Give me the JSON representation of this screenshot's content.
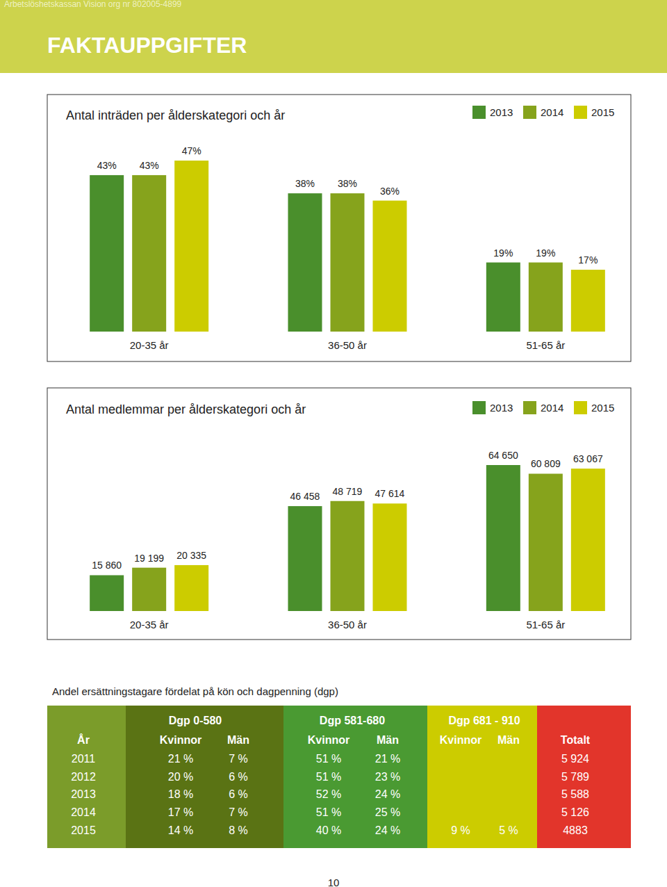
{
  "header": {
    "org": "Arbetslöshetskassan Vision org nr 802005-4899",
    "title": "FAKTAUPPGIFTER"
  },
  "chart_data": [
    {
      "type": "bar",
      "title": "Antal inträden per ålderskategori och år",
      "categories": [
        "20-35 år",
        "36-50 år",
        "51-65 år"
      ],
      "series": [
        {
          "name": "2013",
          "color": "#4a8f2c",
          "values": [
            43,
            38,
            19
          ],
          "value_labels": [
            "43%",
            "38%",
            "19%"
          ]
        },
        {
          "name": "2014",
          "color": "#86a31c",
          "values": [
            43,
            38,
            19
          ],
          "value_labels": [
            "43%",
            "38%",
            "19%"
          ]
        },
        {
          "name": "2015",
          "color": "#cccc00",
          "values": [
            47,
            36,
            17
          ],
          "value_labels": [
            "47%",
            "36%",
            "17%"
          ]
        }
      ],
      "ylim": [
        0,
        47
      ],
      "legend": "top-right",
      "data_labels": true,
      "tick_labels": "x",
      "grid": false
    },
    {
      "type": "bar",
      "title": "Antal medlemmar per ålderskategori och år",
      "categories": [
        "20-35 år",
        "36-50 år",
        "51-65 år"
      ],
      "series": [
        {
          "name": "2013",
          "color": "#4a8f2c",
          "values": [
            15860,
            46458,
            64650
          ],
          "value_labels": [
            "15 860",
            "46 458",
            "64 650"
          ]
        },
        {
          "name": "2014",
          "color": "#86a31c",
          "values": [
            19199,
            48719,
            60809
          ],
          "value_labels": [
            "19 199",
            "48 719",
            "60 809"
          ]
        },
        {
          "name": "2015",
          "color": "#cccc00",
          "values": [
            20335,
            47614,
            63067
          ],
          "value_labels": [
            "20 335",
            "47 614",
            "63 067"
          ]
        }
      ],
      "ylim": [
        0,
        64650
      ],
      "legend": "top-right",
      "data_labels": true,
      "tick_labels": "x",
      "grid": false
    }
  ],
  "table": {
    "title": "Andel ersättningstagare fördelat på kön och dagpenning (dgp)",
    "groups": [
      "Dgp 0-580",
      "Dgp 581-680",
      "Dgp 681 - 910"
    ],
    "columns": [
      "År",
      "Kvinnor",
      "Män",
      "Kvinnor",
      "Män",
      "Kvinnor",
      "Män",
      "Totalt"
    ],
    "rows": [
      [
        "2011",
        "21 %",
        "7 %",
        "51 %",
        "21 %",
        null,
        null,
        "5 924"
      ],
      [
        "2012",
        "20 %",
        "6 %",
        "51 %",
        "23 %",
        null,
        null,
        "5 789"
      ],
      [
        "2013",
        "18 %",
        "6 %",
        "52 %",
        "24 %",
        null,
        null,
        "5 588"
      ],
      [
        "2014",
        "17 %",
        "7 %",
        "51 %",
        "25 %",
        null,
        null,
        "5 126"
      ],
      [
        "2015",
        "14 %",
        "8 %",
        "40 %",
        "24 %",
        "9 %",
        "5 %",
        "4883"
      ]
    ]
  },
  "page_number": "10"
}
